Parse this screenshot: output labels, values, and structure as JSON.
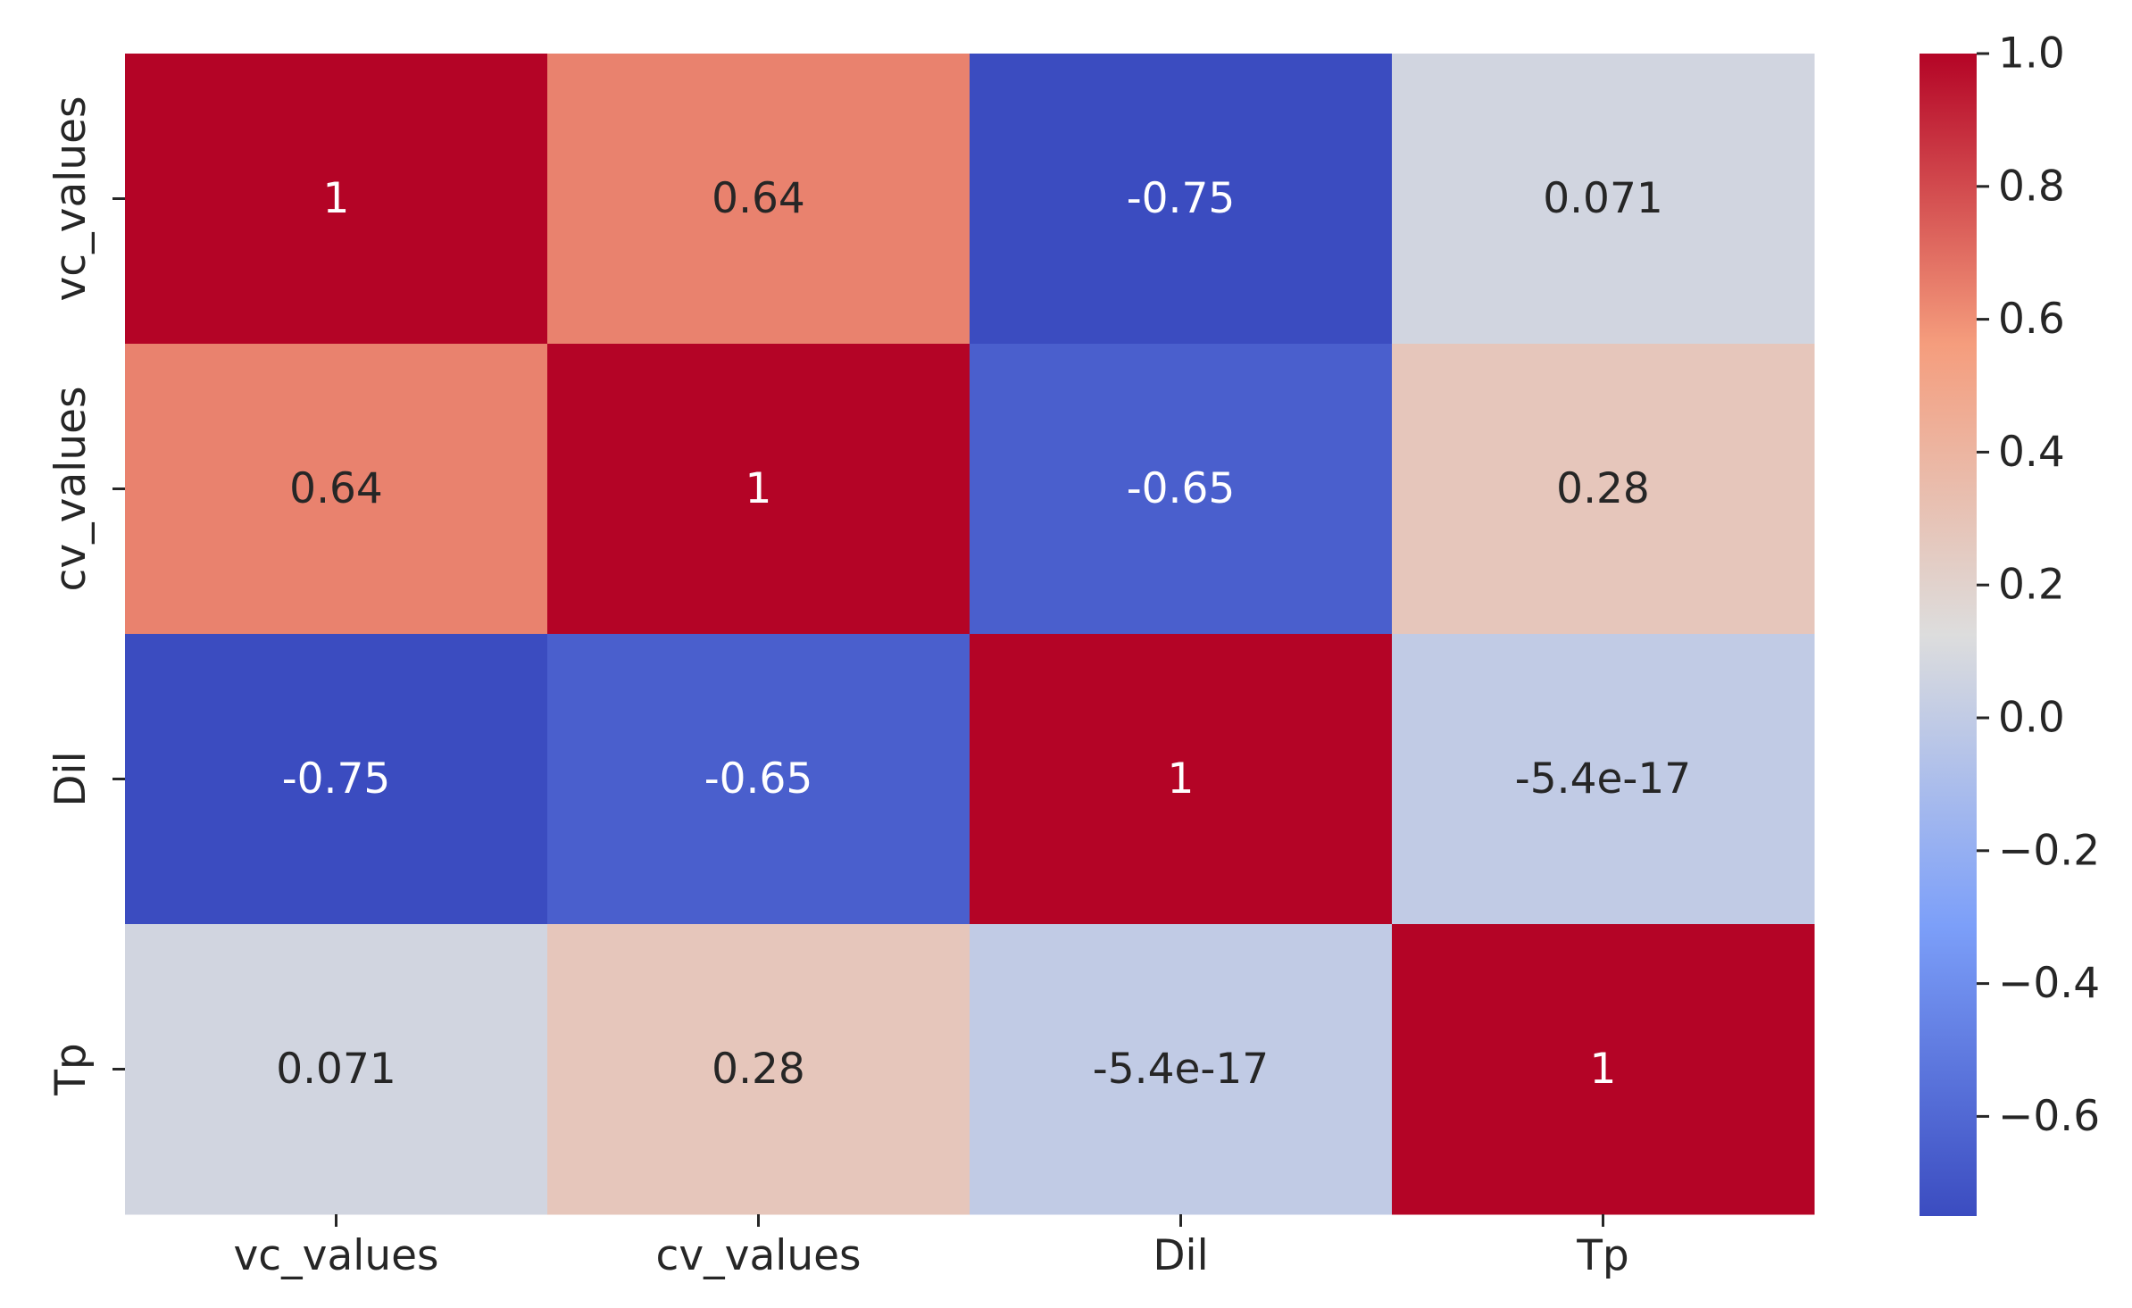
{
  "chart_data": {
    "type": "heatmap",
    "title": "",
    "xlabel": "",
    "ylabel": "",
    "row_labels": [
      "vc_values",
      "cv_values",
      "Dil",
      "Tp"
    ],
    "col_labels": [
      "vc_values",
      "cv_values",
      "Dil",
      "Tp"
    ],
    "values": [
      [
        1,
        0.64,
        -0.75,
        0.071
      ],
      [
        0.64,
        1,
        -0.65,
        0.28
      ],
      [
        -0.75,
        -0.65,
        1,
        -5.4e-17
      ],
      [
        0.071,
        0.28,
        -5.4e-17,
        1
      ]
    ],
    "annotations": [
      [
        "1",
        "0.64",
        "-0.75",
        "0.071"
      ],
      [
        "0.64",
        "1",
        "-0.65",
        "0.28"
      ],
      [
        "-0.75",
        "-0.65",
        "1",
        "-5.4e-17"
      ],
      [
        "0.071",
        "0.28",
        "-5.4e-17",
        "1"
      ]
    ],
    "colormap": "coolwarm",
    "vmin": -0.75,
    "vmax": 1.0,
    "colorbar_ticks": [
      1.0,
      0.8,
      0.6,
      0.4,
      0.2,
      0.0,
      -0.2,
      -0.4,
      -0.6
    ],
    "colorbar_tick_labels": [
      "1.0",
      "0.8",
      "0.6",
      "0.4",
      "0.2",
      "0.0",
      "−0.2",
      "−0.4",
      "−0.6"
    ],
    "colorbar_position": "right"
  }
}
